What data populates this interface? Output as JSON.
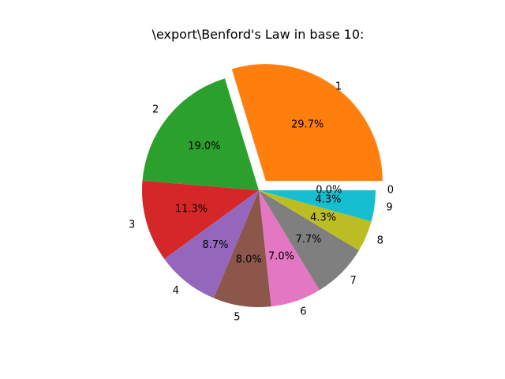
{
  "chart_data": {
    "type": "pie",
    "title": "\\export\\Benford's Law in base 10:",
    "categories": [
      "0",
      "1",
      "2",
      "3",
      "4",
      "5",
      "6",
      "7",
      "8",
      "9"
    ],
    "values": [
      0.0,
      29.7,
      19.0,
      11.3,
      8.7,
      8.0,
      7.0,
      7.7,
      4.3,
      4.3
    ],
    "percent_labels": [
      "0.0%",
      "29.7%",
      "19.0%",
      "11.3%",
      "8.7%",
      "8.0%",
      "7.0%",
      "7.7%",
      "4.3%",
      "4.3%"
    ],
    "colors": [
      "#1f77b4",
      "#ff7f0e",
      "#2ca02c",
      "#d62728",
      "#9467bd",
      "#8c564b",
      "#e377c2",
      "#7f7f7f",
      "#bcbd22",
      "#17becf"
    ],
    "exploded": [
      false,
      true,
      false,
      false,
      false,
      false,
      false,
      false,
      false,
      false
    ],
    "start_angle_deg": 0,
    "direction": "counterclockwise"
  }
}
